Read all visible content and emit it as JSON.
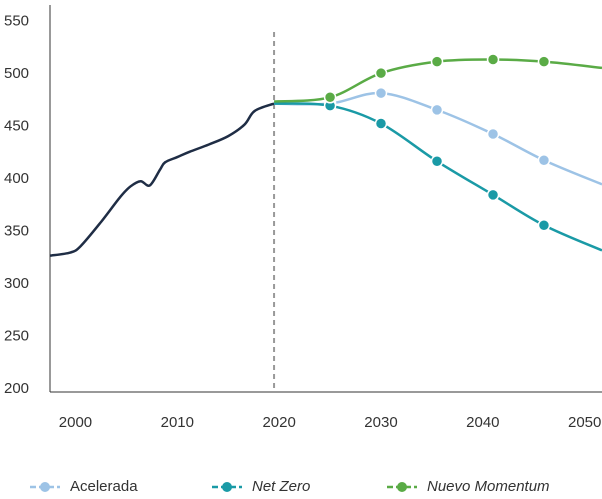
{
  "chart_data": {
    "type": "line",
    "xlim": [
      1997.5,
      2051.7
    ],
    "ylim": [
      197,
      566
    ],
    "xticks": [
      2000,
      2010,
      2020,
      2030,
      2040,
      2050
    ],
    "yticks": [
      200,
      250,
      300,
      350,
      400,
      450,
      500,
      550
    ],
    "vline": 2019.5,
    "series": [
      {
        "color": "#1f2d45",
        "markers": false,
        "x": [
          1997.5,
          1999.5,
          2000.5,
          2002.5,
          2004.4,
          2005.4,
          2006.4,
          2007.3,
          2008.3,
          2008.8,
          2010,
          2011.2,
          2013.1,
          2015,
          2016.6,
          2017.6,
          2019.5
        ],
        "values": [
          327,
          330,
          336,
          359,
          383,
          393,
          398,
          394,
          409,
          416,
          421,
          426,
          433,
          441,
          452,
          465,
          472
        ]
      },
      {
        "name": "Acelerada",
        "color": "#9dc3e6",
        "markers": true,
        "italic": false,
        "x": [
          2019.5,
          2025,
          2030,
          2035.5,
          2041,
          2046,
          2051.7
        ],
        "values": [
          472,
          472,
          482,
          466,
          443,
          418,
          395
        ]
      },
      {
        "name": "Net Zero",
        "color": "#1a9aa6",
        "markers": true,
        "italic": true,
        "x": [
          2019.5,
          2025,
          2030,
          2035.5,
          2041,
          2046,
          2051.7
        ],
        "values": [
          472,
          470,
          453,
          417,
          385,
          356,
          332
        ]
      },
      {
        "name": "Nuevo Momentum",
        "color": "#5aab46",
        "markers": true,
        "italic": true,
        "x": [
          2019.5,
          2025,
          2030,
          2035.5,
          2041,
          2046,
          2051.7
        ],
        "values": [
          474,
          478,
          501,
          512,
          514,
          512,
          506
        ]
      }
    ]
  }
}
